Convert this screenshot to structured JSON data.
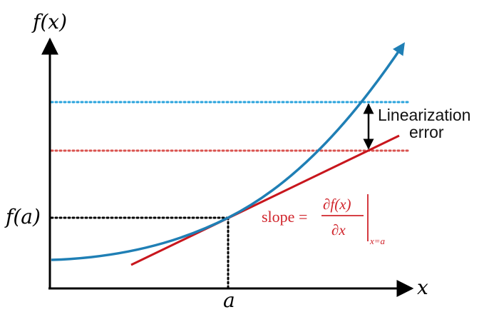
{
  "labels": {
    "y_axis": "f(x)",
    "x_axis": "x",
    "f_a": "f(a)",
    "a": "a",
    "error_line1": "Linearization",
    "error_line2": "error",
    "slope_word": "slope =",
    "slope_numerator": "∂f(x)",
    "slope_denominator": "∂x",
    "slope_subscript": "x=a"
  },
  "colors": {
    "axis": "#000000",
    "curve": "#1f7fb5",
    "tangent": "#c8161d",
    "slope_text": "#d0242b",
    "upper_dotted": "#29a3dc",
    "lower_dotted": "#d9534f",
    "guide_dotted": "#000000",
    "error_text": "#111111"
  }
}
